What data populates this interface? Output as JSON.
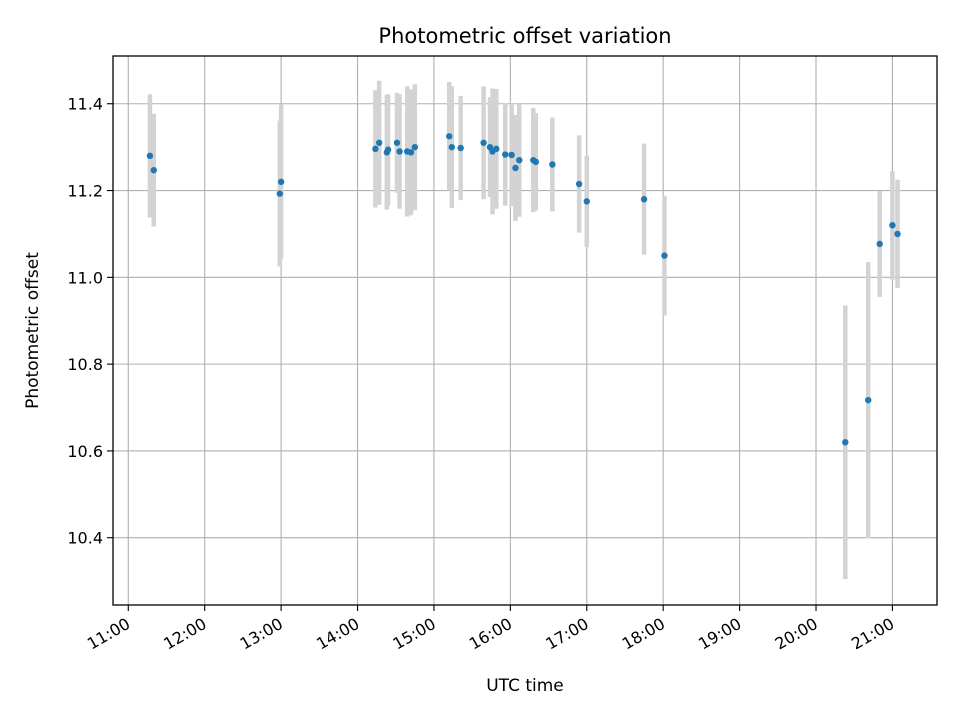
{
  "chart_data": {
    "type": "scatter",
    "title": "Photometric offset variation",
    "xlabel": "UTC time",
    "ylabel": "Photometric offset",
    "xlim": [
      "10:48",
      "21:35"
    ],
    "ylim": [
      10.245,
      11.51
    ],
    "x_ticks": [
      "11:00",
      "12:00",
      "13:00",
      "14:00",
      "15:00",
      "16:00",
      "17:00",
      "18:00",
      "19:00",
      "20:00",
      "21:00"
    ],
    "y_ticks": [
      "10.4",
      "10.6",
      "10.8",
      "11.0",
      "11.2",
      "11.4"
    ],
    "grid": true,
    "point_color": "#1f77b4",
    "errorbar_color": "#d3d3d3",
    "points": [
      {
        "x": "11:17",
        "y": 11.28,
        "err": 0.142
      },
      {
        "x": "11:20",
        "y": 11.247,
        "err": 0.13
      },
      {
        "x": "12:59",
        "y": 11.193,
        "err": 0.168
      },
      {
        "x": "13:00",
        "y": 11.22,
        "err": 0.178
      },
      {
        "x": "14:14",
        "y": 11.296,
        "err": 0.135
      },
      {
        "x": "14:17",
        "y": 11.31,
        "err": 0.143
      },
      {
        "x": "14:23",
        "y": 11.288,
        "err": 0.132
      },
      {
        "x": "14:24",
        "y": 11.294,
        "err": 0.128
      },
      {
        "x": "14:31",
        "y": 11.31,
        "err": 0.115
      },
      {
        "x": "14:33",
        "y": 11.29,
        "err": 0.132
      },
      {
        "x": "14:39",
        "y": 11.29,
        "err": 0.15
      },
      {
        "x": "14:42",
        "y": 11.288,
        "err": 0.145
      },
      {
        "x": "14:45",
        "y": 11.3,
        "err": 0.145
      },
      {
        "x": "15:12",
        "y": 11.325,
        "err": 0.125
      },
      {
        "x": "15:14",
        "y": 11.3,
        "err": 0.14
      },
      {
        "x": "15:21",
        "y": 11.298,
        "err": 0.12
      },
      {
        "x": "15:39",
        "y": 11.31,
        "err": 0.13
      },
      {
        "x": "15:44",
        "y": 11.3,
        "err": 0.115
      },
      {
        "x": "15:46",
        "y": 11.29,
        "err": 0.145
      },
      {
        "x": "15:49",
        "y": 11.296,
        "err": 0.138
      },
      {
        "x": "15:56",
        "y": 11.283,
        "err": 0.118
      },
      {
        "x": "16:01",
        "y": 11.282,
        "err": 0.118
      },
      {
        "x": "16:04",
        "y": 11.252,
        "err": 0.122
      },
      {
        "x": "16:07",
        "y": 11.27,
        "err": 0.13
      },
      {
        "x": "16:18",
        "y": 11.27,
        "err": 0.12
      },
      {
        "x": "16:20",
        "y": 11.266,
        "err": 0.112
      },
      {
        "x": "16:33",
        "y": 11.26,
        "err": 0.108
      },
      {
        "x": "16:54",
        "y": 11.215,
        "err": 0.112
      },
      {
        "x": "17:00",
        "y": 11.175,
        "err": 0.105
      },
      {
        "x": "17:45",
        "y": 11.18,
        "err": 0.128
      },
      {
        "x": "18:01",
        "y": 11.05,
        "err": 0.138
      },
      {
        "x": "20:23",
        "y": 10.62,
        "err": 0.315
      },
      {
        "x": "20:41",
        "y": 10.717,
        "err": 0.318
      },
      {
        "x": "20:50",
        "y": 11.077,
        "err": 0.122
      },
      {
        "x": "21:00",
        "y": 11.12,
        "err": 0.125
      },
      {
        "x": "21:04",
        "y": 11.1,
        "err": 0.125
      }
    ]
  }
}
